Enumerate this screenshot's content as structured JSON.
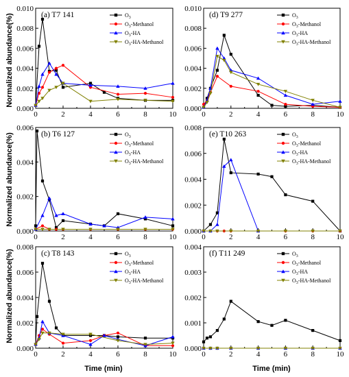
{
  "y_axis_label": "Normalized abundance(%)",
  "x_axis_label": "Time (min)",
  "colors": {
    "O3": "#000000",
    "O3-Methanol": "#ff0000",
    "O3-HA": "#0000ff",
    "O3-HA-Methanol": "#808000"
  },
  "markers": {
    "O3": "square",
    "O3-Methanol": "circle",
    "O3-HA": "triangle-up",
    "O3-HA-Methanol": "triangle-down"
  },
  "chart_data": [
    {
      "type": "line",
      "panel": "(a)",
      "title": "T7  141",
      "xlim": [
        0,
        10
      ],
      "ylim": [
        0,
        0.01
      ],
      "xticks": [
        "0",
        "2",
        "4",
        "6",
        "8",
        "10"
      ],
      "yticks": [
        "0.000",
        "0.002",
        "0.004",
        "0.006",
        "0.008",
        "0.010"
      ],
      "legend_position": "top-right",
      "series": [
        {
          "name": "O3",
          "sub": "3",
          "suffix": "",
          "x": [
            0,
            0.25,
            0.5,
            1,
            1.5,
            2,
            4,
            5,
            6,
            8,
            10
          ],
          "y": [
            0.0003,
            0.0062,
            0.0089,
            0.0037,
            0.0038,
            0.0021,
            0.0025,
            0.0016,
            0.001,
            0.0008,
            0.0008
          ]
        },
        {
          "name": "O3-Methanol",
          "sub": "3",
          "suffix": "-Methanol",
          "x": [
            0,
            0.25,
            0.5,
            1,
            1.5,
            2,
            4,
            6,
            8,
            10
          ],
          "y": [
            0.0003,
            0.0015,
            0.0021,
            0.0036,
            0.004,
            0.0043,
            0.0021,
            0.0014,
            0.0015,
            0.0011
          ]
        },
        {
          "name": "O3-HA",
          "sub": "3",
          "suffix": "-HA",
          "x": [
            0,
            0.25,
            0.5,
            1,
            1.5,
            2,
            4,
            6,
            8,
            10
          ],
          "y": [
            0.0003,
            0.0022,
            0.0034,
            0.0045,
            0.0034,
            0.0025,
            0.0023,
            0.0022,
            0.002,
            0.0025
          ]
        },
        {
          "name": "O3-HA-Methanol",
          "sub": "3",
          "suffix": "-HA-Methanol",
          "x": [
            0,
            0.25,
            0.5,
            1,
            1.5,
            2,
            4,
            6,
            8,
            10
          ],
          "y": [
            0.0003,
            0.0007,
            0.001,
            0.0018,
            0.0021,
            0.0025,
            0.0007,
            0.0009,
            0.0008,
            0.0007
          ]
        }
      ]
    },
    {
      "type": "line",
      "panel": "(d)",
      "title": "T9  277",
      "xlim": [
        0,
        10
      ],
      "ylim": [
        0,
        0.01
      ],
      "xticks": [
        "0",
        "2",
        "4",
        "6",
        "8",
        "10"
      ],
      "yticks": [
        "0.000",
        "0.002",
        "0.004",
        "0.006",
        "0.008",
        "0.010"
      ],
      "legend_position": "top-right",
      "series": [
        {
          "name": "O3",
          "sub": "3",
          "suffix": "",
          "x": [
            0,
            0.25,
            0.5,
            1,
            1.5,
            2,
            4,
            5,
            6,
            8,
            10
          ],
          "y": [
            0.0001,
            0.001,
            0.002,
            0.0038,
            0.0073,
            0.0054,
            0.0013,
            0.0003,
            0.0002,
            0.0003,
            0.0001
          ]
        },
        {
          "name": "O3-Methanol",
          "sub": "3",
          "suffix": "-Methanol",
          "x": [
            0,
            0.25,
            0.5,
            1,
            2,
            4,
            6,
            8,
            10
          ],
          "y": [
            0.0004,
            0.0008,
            0.0016,
            0.0032,
            0.0022,
            0.0017,
            0.0004,
            0.0002,
            0.0001
          ]
        },
        {
          "name": "O3-HA",
          "sub": "3",
          "suffix": "-HA",
          "x": [
            0,
            0.25,
            0.5,
            1,
            1.5,
            2,
            4,
            6,
            8,
            10
          ],
          "y": [
            0.0001,
            0.0008,
            0.002,
            0.006,
            0.005,
            0.0038,
            0.003,
            0.0013,
            0.0004,
            0.0007
          ]
        },
        {
          "name": "O3-HA-Methanol",
          "sub": "3",
          "suffix": "-HA-Methanol",
          "x": [
            0,
            0.25,
            0.5,
            1,
            1.5,
            2,
            4,
            6,
            8,
            10
          ],
          "y": [
            0.0001,
            0.0006,
            0.0015,
            0.0052,
            0.0048,
            0.0036,
            0.0024,
            0.0017,
            0.0008,
            0.0001
          ]
        }
      ]
    },
    {
      "type": "line",
      "panel": "(b)",
      "title": "T6  127",
      "xlim": [
        0,
        10
      ],
      "ylim": [
        0,
        0.006
      ],
      "xticks": [
        "0",
        "2",
        "4",
        "6",
        "8",
        "10"
      ],
      "yticks": [
        "0.000",
        "0.002",
        "0.004",
        "0.006"
      ],
      "legend_position": "top-right",
      "series": [
        {
          "name": "O3",
          "sub": "3",
          "suffix": "",
          "x": [
            0,
            0.1,
            0.5,
            1,
            1.5,
            2,
            4,
            5,
            6,
            8,
            10
          ],
          "y": [
            0.0003,
            0.0058,
            0.0029,
            0.0018,
            0.0002,
            0.0006,
            0.0004,
            0.0003,
            0.001,
            0.0007,
            0.0003
          ]
        },
        {
          "name": "O3-Methanol",
          "sub": "3",
          "suffix": "-Methanol",
          "x": [
            0,
            0.5,
            1,
            1.5,
            2,
            4,
            6,
            8,
            10
          ],
          "y": [
            0.0001,
            0.0003,
            0.0001,
            0.0001,
            0.0001,
            0.0001,
            0.0001,
            0.0001,
            0.0001
          ]
        },
        {
          "name": "O3-HA",
          "sub": "3",
          "suffix": "-HA",
          "x": [
            0,
            0.5,
            1,
            1.5,
            2,
            4,
            5,
            6,
            8,
            10
          ],
          "y": [
            0.0001,
            0.0009,
            0.0019,
            0.0009,
            0.001,
            0.0004,
            0.0003,
            0.0002,
            0.0008,
            0.0007
          ]
        },
        {
          "name": "O3-HA-Methanol",
          "sub": "3",
          "suffix": "-HA-Methanol",
          "x": [
            0,
            0.5,
            1,
            2,
            4,
            6,
            8,
            10
          ],
          "y": [
            0.0001,
            0.0001,
            0.0001,
            0.0001,
            0.0001,
            0.0001,
            0.0001,
            0.0001
          ]
        }
      ]
    },
    {
      "type": "line",
      "panel": "(e)",
      "title": "T10  263",
      "xlim": [
        0,
        10
      ],
      "ylim": [
        0,
        0.008
      ],
      "xticks": [
        "0",
        "2",
        "4",
        "6",
        "8",
        "10"
      ],
      "yticks": [
        "0.000",
        "0.002",
        "0.004",
        "0.006",
        "0.008"
      ],
      "legend_position": "top-right",
      "series": [
        {
          "name": "O3",
          "sub": "3",
          "suffix": "",
          "x": [
            0,
            0.5,
            1,
            1.5,
            2,
            4,
            5,
            6,
            8,
            10
          ],
          "y": [
            0,
            0.0005,
            0.0014,
            0.0071,
            0.0045,
            0.0044,
            0.0042,
            0.0028,
            0.0023,
            0
          ]
        },
        {
          "name": "O3-Methanol",
          "sub": "3",
          "suffix": "-Methanol",
          "x": [
            0,
            0.5,
            1,
            1.5,
            2,
            4,
            6,
            8,
            10
          ],
          "y": [
            0,
            0,
            0,
            0,
            0,
            0,
            0,
            0,
            0
          ]
        },
        {
          "name": "O3-HA",
          "sub": "3",
          "suffix": "-HA",
          "x": [
            0,
            0.5,
            1,
            1.5,
            2,
            4
          ],
          "y": [
            0,
            0,
            0.0005,
            0.005,
            0.0055,
            0
          ]
        },
        {
          "name": "O3-HA-Methanol",
          "sub": "3",
          "suffix": "-HA-Methanol",
          "x": [
            0,
            0.5,
            1,
            2,
            4,
            6,
            8,
            10
          ],
          "y": [
            0,
            0,
            0,
            0,
            0,
            0,
            0,
            0
          ]
        }
      ]
    },
    {
      "type": "line",
      "panel": "(c)",
      "title": "T8  143",
      "xlim": [
        0,
        10
      ],
      "ylim": [
        0,
        0.008
      ],
      "xticks": [
        "0",
        "2",
        "4",
        "6",
        "8",
        "10"
      ],
      "yticks": [
        "0.000",
        "0.002",
        "0.004",
        "0.006",
        "0.008"
      ],
      "legend_position": "top-right",
      "series": [
        {
          "name": "O3",
          "sub": "3",
          "suffix": "",
          "x": [
            0,
            0.1,
            0.5,
            1,
            1.5,
            2,
            4,
            5,
            6,
            8,
            10
          ],
          "y": [
            0.0003,
            0.0025,
            0.0067,
            0.0037,
            0.0016,
            0.001,
            0.001,
            0.001,
            0.0009,
            0.0008,
            0.0008
          ]
        },
        {
          "name": "O3-Methanol",
          "sub": "3",
          "suffix": "-Methanol",
          "x": [
            0,
            0.25,
            0.5,
            1,
            2,
            4,
            5,
            6,
            8,
            10
          ],
          "y": [
            0.0003,
            0.001,
            0.0015,
            0.0011,
            0.0004,
            0.0006,
            0.001,
            0.0012,
            0.0002,
            0.0002
          ]
        },
        {
          "name": "O3-HA",
          "sub": "3",
          "suffix": "-HA",
          "x": [
            0,
            0.25,
            0.5,
            1,
            2,
            4,
            5,
            6,
            8,
            10
          ],
          "y": [
            0.0003,
            0.0008,
            0.0021,
            0.0012,
            0.001,
            0.0003,
            0.001,
            0.0007,
            0.0002,
            0.0009
          ]
        },
        {
          "name": "O3-HA-Methanol",
          "sub": "3",
          "suffix": "-HA-Methanol",
          "x": [
            0,
            0.25,
            0.5,
            1,
            2,
            4,
            6,
            8,
            10
          ],
          "y": [
            0.0003,
            0.0007,
            0.0012,
            0.0012,
            0.0011,
            0.0011,
            0.0006,
            0.0003,
            0.0004
          ]
        }
      ]
    },
    {
      "type": "line",
      "panel": "(f)",
      "title": "T11  249",
      "xlim": [
        0,
        10
      ],
      "ylim": [
        0,
        0.004
      ],
      "xticks": [
        "0",
        "2",
        "4",
        "6",
        "8",
        "10"
      ],
      "yticks": [
        "0.000",
        "0.001",
        "0.002",
        "0.003",
        "0.004"
      ],
      "legend_position": "top-right",
      "series": [
        {
          "name": "O3",
          "sub": "3",
          "suffix": "",
          "x": [
            0,
            0.25,
            0.5,
            1,
            1.5,
            2,
            4,
            5,
            6,
            8,
            10
          ],
          "y": [
            0.00025,
            0.0004,
            0.00045,
            0.0007,
            0.00115,
            0.00185,
            0.00105,
            0.0009,
            0.0011,
            0.0007,
            0.0003
          ]
        },
        {
          "name": "O3-Methanol",
          "sub": "3",
          "suffix": "-Methanol",
          "x": [
            0,
            0.5,
            1,
            2,
            4,
            6,
            8,
            10
          ],
          "y": [
            0,
            0,
            0,
            0,
            0,
            0,
            0,
            0
          ]
        },
        {
          "name": "O3-HA",
          "sub": "3",
          "suffix": "-HA",
          "x": [
            0,
            0.5,
            1,
            2,
            4,
            6,
            8,
            10
          ],
          "y": [
            0,
            0,
            0,
            0,
            0,
            0,
            0,
            0
          ]
        },
        {
          "name": "O3-HA-Methanol",
          "sub": "3",
          "suffix": "-HA-Methanol",
          "x": [
            0,
            0.5,
            1,
            2,
            4,
            6,
            8,
            10
          ],
          "y": [
            0,
            0,
            0,
            0,
            0,
            0,
            0,
            0
          ]
        }
      ]
    }
  ]
}
